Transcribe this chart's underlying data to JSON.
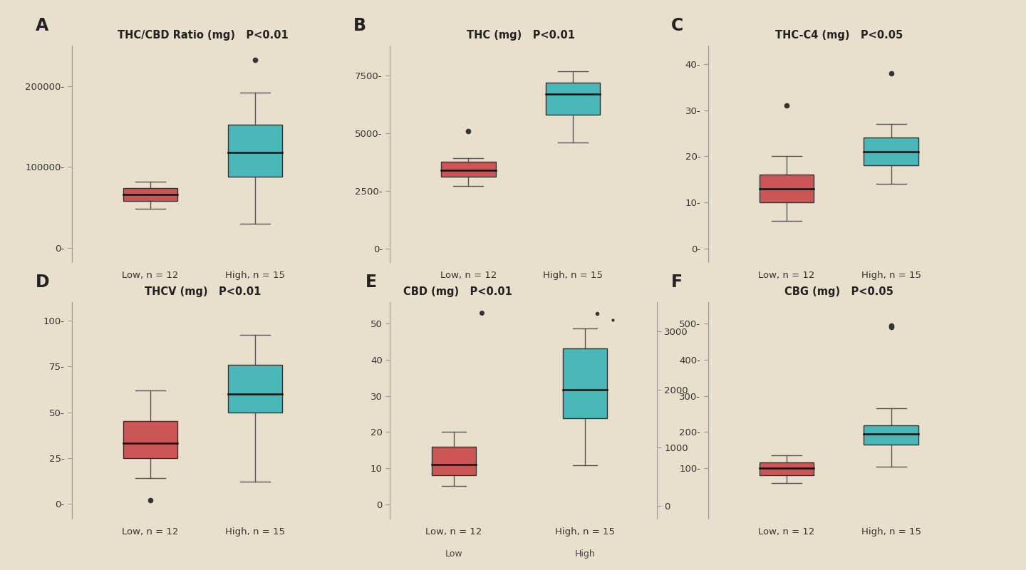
{
  "background_color": "#e8e0cc",
  "low_color": "#cc5555",
  "high_color": "#4ab8b8",
  "median_color": "#111111",
  "whisker_color": "#555555",
  "outlier_color": "#333333",
  "panels": [
    {
      "label": "A",
      "title": "THC/CBD Ratio (mg)",
      "pval": "P<0.01",
      "low": {
        "q1": 58000,
        "median": 66000,
        "q3": 74000,
        "whisker_low": 48000,
        "whisker_high": 82000,
        "outliers": []
      },
      "high": {
        "q1": 88000,
        "median": 118000,
        "q3": 152000,
        "whisker_low": 30000,
        "whisker_high": 192000,
        "outliers": [
          232000
        ]
      },
      "yticks": [
        0,
        100000,
        200000
      ],
      "ylim": [
        -18000,
        250000
      ],
      "ytick_labels": [
        "0-",
        "100000-",
        "200000-"
      ]
    },
    {
      "label": "B",
      "title": "THC (mg)",
      "pval": "P<0.01",
      "low": {
        "q1": 3100,
        "median": 3400,
        "q3": 3750,
        "whisker_low": 2700,
        "whisker_high": 3900,
        "outliers": [
          5100
        ]
      },
      "high": {
        "q1": 5800,
        "median": 6700,
        "q3": 7200,
        "whisker_low": 4600,
        "whisker_high": 7700,
        "outliers": []
      },
      "yticks": [
        0,
        2500,
        5000,
        7500
      ],
      "ylim": [
        -600,
        8800
      ],
      "ytick_labels": [
        "0-",
        "2500-",
        "5000-",
        "7500-"
      ]
    },
    {
      "label": "C",
      "title": "THC-C4 (mg)",
      "pval": "P<0.05",
      "low": {
        "q1": 10,
        "median": 13,
        "q3": 16,
        "whisker_low": 6,
        "whisker_high": 20,
        "outliers": [
          31
        ]
      },
      "high": {
        "q1": 18,
        "median": 21,
        "q3": 24,
        "whisker_low": 14,
        "whisker_high": 27,
        "outliers": [
          38
        ]
      },
      "yticks": [
        0,
        10,
        20,
        30,
        40
      ],
      "ylim": [
        -3,
        44
      ],
      "ytick_labels": [
        "0-",
        "10-",
        "20-",
        "30-",
        "40-"
      ]
    },
    {
      "label": "D",
      "title": "THCV (mg)",
      "pval": "P<0.01",
      "low": {
        "q1": 25,
        "median": 33,
        "q3": 45,
        "whisker_low": 14,
        "whisker_high": 62,
        "outliers": [
          2
        ]
      },
      "high": {
        "q1": 50,
        "median": 60,
        "q3": 76,
        "whisker_low": 12,
        "whisker_high": 92,
        "outliers": []
      },
      "yticks": [
        0,
        25,
        50,
        75,
        100
      ],
      "ylim": [
        -8,
        110
      ],
      "ytick_labels": [
        "0-",
        "25-",
        "50-",
        "75-",
        "100-"
      ]
    },
    {
      "label": "E_low",
      "title": "CBD (mg)",
      "pval": "P<0.01",
      "low": {
        "q1": 8,
        "median": 11,
        "q3": 16,
        "whisker_low": 5,
        "whisker_high": 20,
        "outliers": []
      },
      "yticks": [
        0,
        10,
        20,
        30,
        40,
        50
      ],
      "ylim": [
        -4,
        56
      ],
      "ytick_labels": [
        "0",
        "10",
        "20",
        "30",
        "40",
        "50"
      ]
    },
    {
      "label": "E_high",
      "title": "",
      "pval": "",
      "high": {
        "q1": 1500,
        "median": 2000,
        "q3": 2700,
        "whisker_low": 700,
        "whisker_high": 3050,
        "outliers": []
      },
      "yticks": [
        0,
        1000,
        2000,
        3000
      ],
      "ylim": [
        -220,
        3500
      ],
      "ytick_labels": [
        "0",
        "1000",
        "2000",
        "3000"
      ]
    },
    {
      "label": "F",
      "title": "CBG (mg)",
      "pval": "P<0.05",
      "low": {
        "q1": 80,
        "median": 100,
        "q3": 115,
        "whisker_low": 58,
        "whisker_high": 135,
        "outliers": []
      },
      "high": {
        "q1": 165,
        "median": 195,
        "q3": 218,
        "whisker_low": 105,
        "whisker_high": 265,
        "outliers": [
          490
        ]
      },
      "yticks": [
        100,
        200,
        300,
        400,
        500
      ],
      "ylim": [
        -40,
        560
      ],
      "ytick_labels": [
        "100-",
        "200-",
        "300-",
        "400-",
        "500-"
      ]
    }
  ],
  "xlabel_low": "Low, n = 12",
  "xlabel_high": "High, n = 15"
}
